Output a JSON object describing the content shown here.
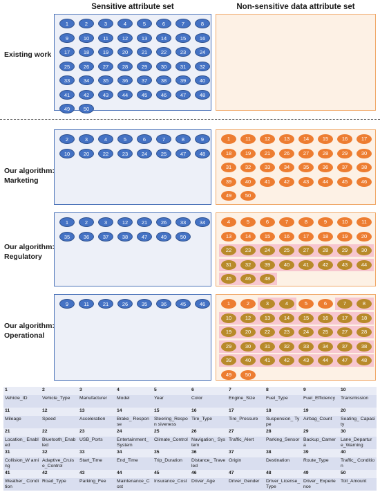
{
  "headers": {
    "sensitive": "Sensitive attribute set",
    "non_sensitive": "Non-sensitive data attribute set"
  },
  "rows": [
    {
      "label": "Existing work",
      "sensitive": [
        "1",
        "2",
        "3",
        "4",
        "5",
        "6",
        "7",
        "8",
        "9",
        "10",
        "11",
        "12",
        "13",
        "14",
        "15",
        "16",
        "17",
        "18",
        "19",
        "20",
        "21",
        "22",
        "23",
        "24",
        "25",
        "26",
        "27",
        "28",
        "29",
        "30",
        "31",
        "32",
        "33",
        "34",
        "35",
        "36",
        "37",
        "38",
        "39",
        "40",
        "41",
        "42",
        "43",
        "44",
        "45",
        "46",
        "47",
        "48",
        "49",
        "50"
      ],
      "non_sensitive": [],
      "non_sensitive_style": []
    },
    {
      "label": "Our algorithm: Marketing",
      "sensitive": [
        "2",
        "3",
        "4",
        "5",
        "6",
        "7",
        "8",
        "9",
        "10",
        "20",
        "22",
        "23",
        "24",
        "25",
        "47",
        "48"
      ],
      "non_sensitive": [
        "1",
        "11",
        "12",
        "13",
        "14",
        "15",
        "16",
        "17",
        "18",
        "19",
        "21",
        "26",
        "27",
        "28",
        "29",
        "30",
        "31",
        "32",
        "33",
        "34",
        "35",
        "36",
        "37",
        "38",
        "39",
        "40",
        "41",
        "42",
        "43",
        "44",
        "45",
        "46",
        "49",
        "50"
      ],
      "non_sensitive_style": []
    },
    {
      "label": "Our algorithm: Regulatory",
      "sensitive": [
        "1",
        "2",
        "3",
        "12",
        "21",
        "26",
        "33",
        "34",
        "35",
        "36",
        "37",
        "38",
        "47",
        "49",
        "50"
      ],
      "non_sensitive": [
        "4",
        "5",
        "6",
        "7",
        "8",
        "9",
        "10",
        "11",
        "13",
        "14",
        "15",
        "16",
        "17",
        "18",
        "19",
        "20",
        "22",
        "23",
        "24",
        "25",
        "27",
        "28",
        "29",
        "30",
        "31",
        "32",
        "39",
        "40",
        "41",
        "42",
        "43",
        "44",
        "45",
        "46",
        "48"
      ],
      "non_sensitive_style": [
        "o",
        "o",
        "o",
        "o",
        "o",
        "o",
        "o",
        "o",
        "o",
        "o",
        "o",
        "o",
        "o",
        "o",
        "o",
        "o",
        "olive",
        "olive",
        "olive",
        "olive",
        "olive",
        "olive",
        "olive",
        "olive",
        "olive",
        "olive",
        "olive",
        "olive",
        "olive",
        "olive",
        "olive",
        "olive",
        "olive",
        "olive",
        "olive"
      ]
    },
    {
      "label": "Our algorithm: Operational",
      "sensitive": [
        "9",
        "11",
        "21",
        "26",
        "35",
        "36",
        "45",
        "46"
      ],
      "non_sensitive": [
        "1",
        "2",
        "3",
        "4",
        "5",
        "6",
        "7",
        "8",
        "10",
        "12",
        "13",
        "14",
        "15",
        "16",
        "17",
        "18",
        "19",
        "20",
        "22",
        "23",
        "24",
        "25",
        "27",
        "28",
        "29",
        "30",
        "31",
        "32",
        "33",
        "34",
        "37",
        "38",
        "39",
        "40",
        "41",
        "42",
        "43",
        "44",
        "47",
        "48",
        "49",
        "50"
      ],
      "non_sensitive_style": [
        "o",
        "o",
        "olive",
        "olive",
        "o",
        "o",
        "olive",
        "olive",
        "olive",
        "olive",
        "olive",
        "olive",
        "olive",
        "olive",
        "olive",
        "olive",
        "olive",
        "olive",
        "olive",
        "olive",
        "olive",
        "olive",
        "olive",
        "olive",
        "olive",
        "olive",
        "olive",
        "olive",
        "olive",
        "olive",
        "olive",
        "olive",
        "olive",
        "olive",
        "olive",
        "olive",
        "olive",
        "olive",
        "olive",
        "olive",
        "o",
        "o"
      ]
    }
  ],
  "attributes": [
    "Vehicle_ID",
    "Vehicle_Type",
    "Manufacturer",
    "Model",
    "Year",
    "Color",
    "Engine_Size",
    "Fuel_Type",
    "Fuel_Efficiency",
    "Transmission",
    "Mileage",
    "Speed",
    "Acceleration",
    "Brake_Response",
    "Steering_Responsiveness",
    "Tire_Type",
    "Tire_Pressure",
    "Suspension_Type",
    "Airbag_Count",
    "Seating_Capacity",
    "Location_Enabled",
    "Bluetooth_Enabled",
    "USB_Ports",
    "Entertainment_System",
    "Climate_Control",
    "Navigation_System",
    "Traffic_Alert",
    "Parking_Sensor",
    "Backup_Camera",
    "Lane_Departure_Warning",
    "Collision_Warning",
    "Adaptive_Cruise_Control",
    "Start_Time",
    "End_Time",
    "Trip_Duration",
    "Distance_Traveled",
    "Origin",
    "Destination",
    "Route_Type",
    "Traffic_Condition",
    "Weather_Condition",
    "Road_Type",
    "Parking_Fee",
    "Maintenance_Cost",
    "Insurance_Cost",
    "Driver_Age",
    "Driver_Gender",
    "Driver_License_Type",
    "Driver_Experience",
    "Toll_Amount"
  ],
  "attribute_display": [
    "Vehicle_ID",
    "Vehicle_Type",
    "Manufacturer",
    "Model",
    "Year",
    "Color",
    "Engine_Size",
    "Fuel_Type",
    "Fuel_Efficiency",
    "Transmission",
    "Mileage",
    "Speed",
    "Acceleration",
    "Brake_ Response",
    "Steering_Respon siveness",
    "Tire_Type",
    "Tire_Pressure",
    "Suspension_ Type",
    "Airbag_Count",
    "Seating_ Capacity",
    "Location_ Enabled",
    "Bluetooth_Enab led",
    "USB_Ports",
    "Entertainment_ System",
    "Climate_Control",
    "Navigation_ System",
    "Traffic_Alert",
    "Parking_Sensor",
    "Backup_Camera",
    "Lane_Departur e_Warning",
    "Collision_W arning",
    "Adaptive_Cruis e_Control",
    "Start_Time",
    "End_Time",
    "Trip_Duration",
    "Distance_ Traveled",
    "Origin",
    "Destination",
    "Route_Type",
    "Traffic_ Condition",
    "Weather_ Condition",
    "Road_Type",
    "Parking_Fee",
    "Maintenance_C ost",
    "Insurance_Cost",
    "Driver_Age",
    "Driver_Gender",
    "Driver_License_ Type",
    "Driver_ Experience",
    "Toll_Amount"
  ],
  "colors": {
    "sensitive_chip": "#4472c4",
    "non_sensitive_chip": "#ed7d31",
    "olive_chip": "#b88a2a",
    "highlight": "#f7c6cf",
    "sensitive_panel": "#edf0f8",
    "non_sensitive_panel": "#fdf1e5"
  }
}
